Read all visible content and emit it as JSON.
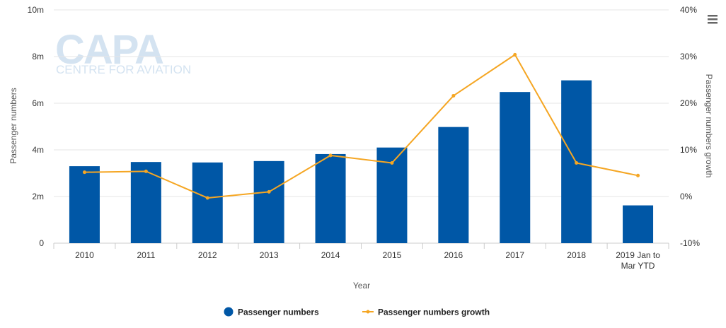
{
  "logo": {
    "main": "CAPA",
    "sub": "CENTRE FOR AVIATION"
  },
  "menu_icon": "hamburger-menu-icon",
  "colors": {
    "bar": "#0057a6",
    "line": "#f5a623",
    "grid": "#e6e6e6",
    "logo": "#d4e3f1"
  },
  "legend": {
    "bar_label": "Passenger numbers",
    "line_label": "Passenger numbers growth",
    "placement": "bottom-center"
  },
  "chart_data": {
    "type": "bar",
    "categories": [
      "2010",
      "2011",
      "2012",
      "2013",
      "2014",
      "2015",
      "2016",
      "2017",
      "2018",
      "2019 Jan to Mar YTD"
    ],
    "category_label_lines": [
      [
        "2010"
      ],
      [
        "2011"
      ],
      [
        "2012"
      ],
      [
        "2013"
      ],
      [
        "2014"
      ],
      [
        "2015"
      ],
      [
        "2016"
      ],
      [
        "2017"
      ],
      [
        "2018"
      ],
      [
        "2019 Jan to",
        "Mar YTD"
      ]
    ],
    "xlabel": "Year",
    "ylabel": "Passenger numbers",
    "y2label": "Passenger numbers growth",
    "ylim": [
      0,
      10000000
    ],
    "y_ticks": [
      0,
      2000000,
      4000000,
      6000000,
      8000000,
      10000000
    ],
    "y_tick_labels": [
      "0",
      "2m",
      "4m",
      "6m",
      "8m",
      "10m"
    ],
    "y2lim": [
      -10,
      40
    ],
    "y2_ticks": [
      -10,
      0,
      10,
      20,
      30,
      40
    ],
    "y2_tick_labels": [
      "-10%",
      "0%",
      "10%",
      "20%",
      "30%",
      "40%"
    ],
    "grid": true,
    "series": [
      {
        "name": "Passenger numbers",
        "type": "bar",
        "axis": "left",
        "values": [
          3300000,
          3480000,
          3460000,
          3520000,
          3820000,
          4100000,
          4980000,
          6480000,
          6980000,
          1620000
        ]
      },
      {
        "name": "Passenger numbers growth",
        "type": "line",
        "axis": "right",
        "values": [
          5.2,
          5.4,
          -0.3,
          1.0,
          8.8,
          7.2,
          21.6,
          30.4,
          7.2,
          4.5
        ]
      }
    ]
  }
}
